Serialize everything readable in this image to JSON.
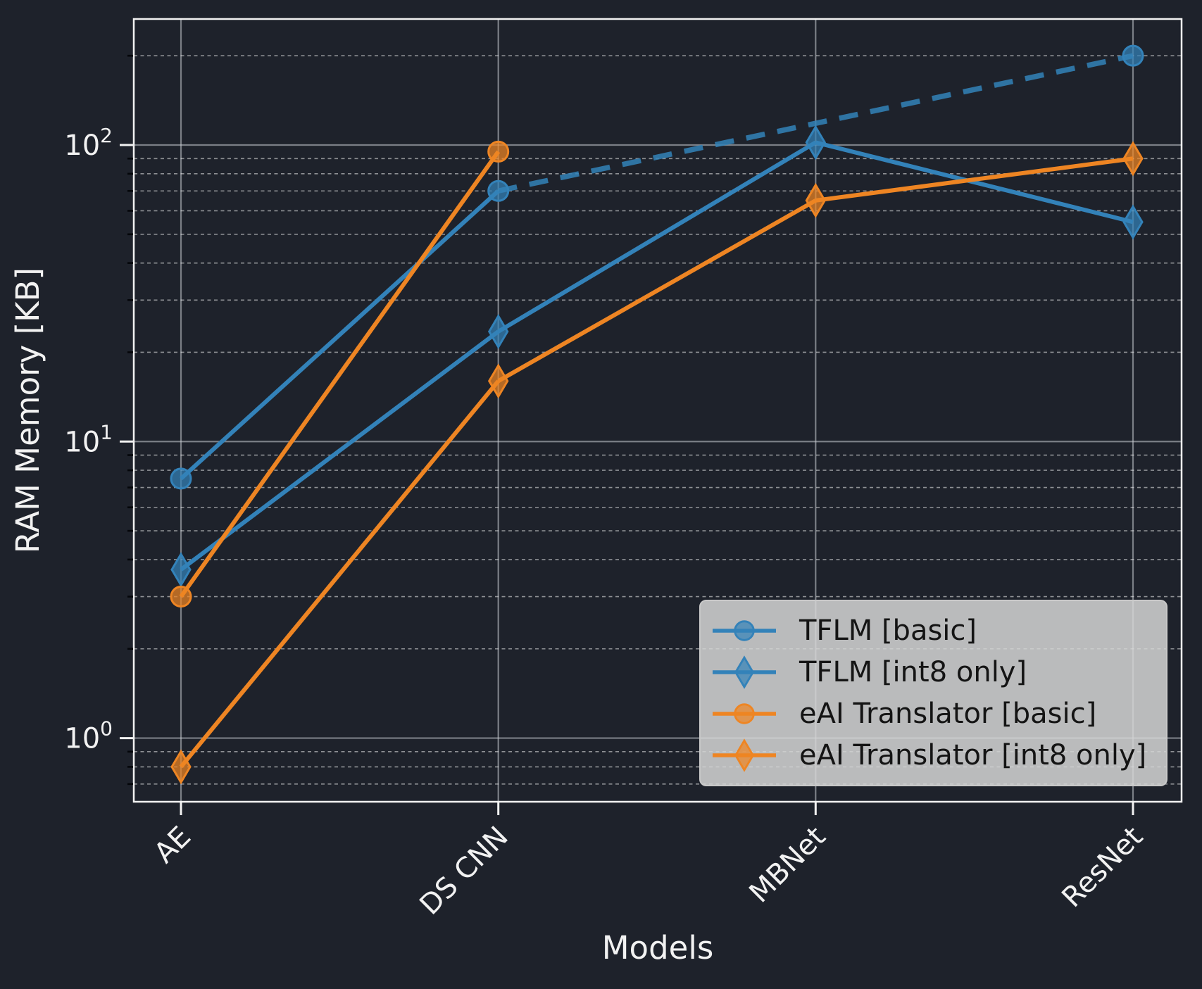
{
  "figure": {
    "background": "#1e222b",
    "text_color": "#f2f2f2",
    "spine_color": "#f2f2f2",
    "grid_major_color": "#c8ccd2",
    "grid_minor_color": "#ffffff",
    "minor_tick_color": "#04060a",
    "legend_background": "#d6d6d6",
    "legend_border": "#c8c8c8",
    "legend_text_color": "#141414"
  },
  "chart_data": {
    "type": "line",
    "title": "",
    "xlabel": "Models",
    "ylabel": "RAM Memory [KB]",
    "categories": [
      "AE",
      "DS CNN",
      "MBNet",
      "ResNet"
    ],
    "y_scale": "log",
    "ylim": [
      0.61,
      266
    ],
    "y_ticks": [
      {
        "value": 1,
        "label": "10^0"
      },
      {
        "value": 10,
        "label": "10^1"
      },
      {
        "value": 100,
        "label": "10^2"
      }
    ],
    "grid": {
      "major": true,
      "minor": true,
      "minor_style": "dashed"
    },
    "legend_position": "lower right",
    "series": [
      {
        "name": "TFLM [basic]",
        "color": "#3382b9",
        "marker": "circle",
        "points": [
          {
            "category": "AE",
            "value": 7.5
          },
          {
            "category": "DS CNN",
            "value": 70
          },
          {
            "category": "ResNet",
            "value": 200
          }
        ],
        "dashed_from_point": 1,
        "note": "segment DS CNN to ResNet drawn dashed (no MBNet measurement)"
      },
      {
        "name": "TFLM [int8 only]",
        "color": "#3382b9",
        "marker": "diamond",
        "points": [
          {
            "category": "AE",
            "value": 3.7
          },
          {
            "category": "DS CNN",
            "value": 23.5
          },
          {
            "category": "MBNet",
            "value": 102
          },
          {
            "category": "ResNet",
            "value": 55
          }
        ],
        "dashed_from_point": null
      },
      {
        "name": "eAI Translator [basic]",
        "color": "#ee8523",
        "marker": "circle",
        "points": [
          {
            "category": "AE",
            "value": 3.0
          },
          {
            "category": "DS CNN",
            "value": 95
          }
        ],
        "dashed_from_point": null
      },
      {
        "name": "eAI Translator [int8 only]",
        "color": "#ee8523",
        "marker": "diamond",
        "points": [
          {
            "category": "AE",
            "value": 0.8
          },
          {
            "category": "DS CNN",
            "value": 16
          },
          {
            "category": "MBNet",
            "value": 65
          },
          {
            "category": "ResNet",
            "value": 90
          }
        ],
        "dashed_from_point": null
      }
    ]
  }
}
